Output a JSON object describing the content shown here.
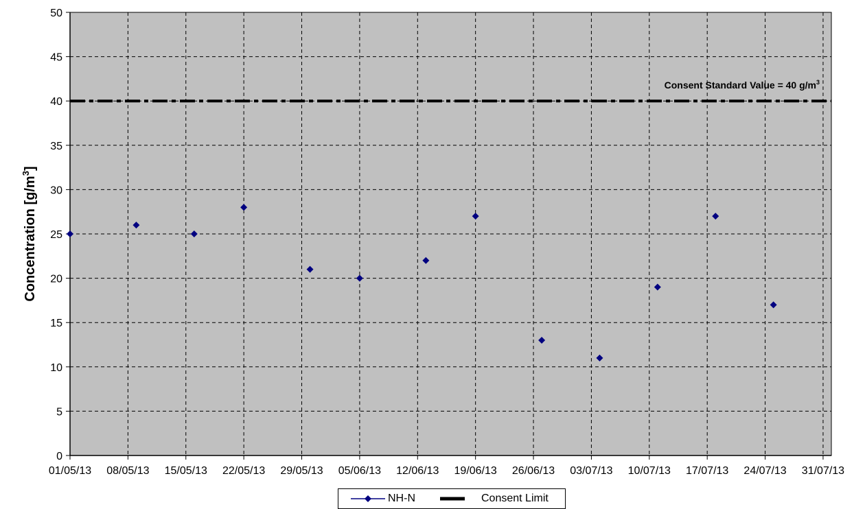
{
  "chart_data": {
    "type": "scatter",
    "ylabel": "Concentration [g/m",
    "ylabel_sup": "3",
    "ylabel_close": "]",
    "xlabel": "",
    "ylim": [
      0,
      50
    ],
    "y_ticks": [
      0,
      5,
      10,
      15,
      20,
      25,
      30,
      35,
      40,
      45,
      50
    ],
    "x_range": [
      "01/05/13",
      "01/08/13"
    ],
    "x_ticks": [
      "01/05/13",
      "08/05/13",
      "15/05/13",
      "22/05/13",
      "29/05/13",
      "05/06/13",
      "12/06/13",
      "19/06/13",
      "26/06/13",
      "03/07/13",
      "10/07/13",
      "17/07/13",
      "24/07/13",
      "31/07/13"
    ],
    "grid": true,
    "legend_position": "bottom-center",
    "series": [
      {
        "name": "NH-N",
        "color": "#000080",
        "marker": "diamond",
        "points": [
          {
            "x": "01/05/13",
            "y": 25
          },
          {
            "x": "09/05/13",
            "y": 26
          },
          {
            "x": "16/05/13",
            "y": 25
          },
          {
            "x": "22/05/13",
            "y": 28
          },
          {
            "x": "30/05/13",
            "y": 21
          },
          {
            "x": "05/06/13",
            "y": 20
          },
          {
            "x": "13/06/13",
            "y": 22
          },
          {
            "x": "19/06/13",
            "y": 27
          },
          {
            "x": "27/06/13",
            "y": 13
          },
          {
            "x": "04/07/13",
            "y": 11
          },
          {
            "x": "11/07/13",
            "y": 19
          },
          {
            "x": "18/07/13",
            "y": 27
          },
          {
            "x": "25/07/13",
            "y": 17
          }
        ]
      },
      {
        "name": "Consent Limit",
        "color": "#000000",
        "style": "dash-dot",
        "y": 40
      }
    ],
    "annotation": {
      "text": "Consent Standard Value = 40 g/m",
      "sup": "3"
    }
  },
  "legend": {
    "items": [
      {
        "label": "NH-N"
      },
      {
        "label": "Consent Limit"
      }
    ]
  }
}
